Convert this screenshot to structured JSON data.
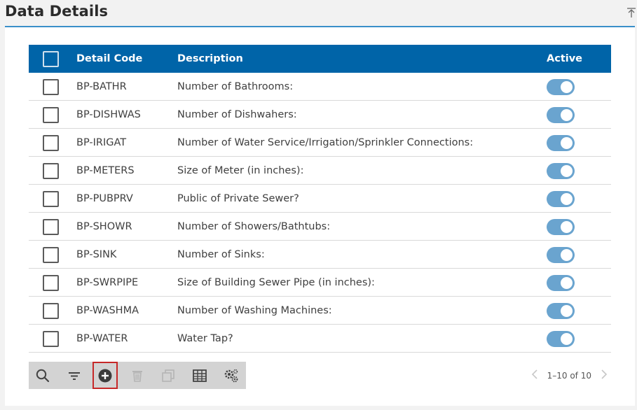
{
  "header": {
    "title": "Data Details"
  },
  "table": {
    "columns": {
      "code": "Detail Code",
      "description": "Description",
      "active": "Active"
    },
    "rows": [
      {
        "code": "BP-BATHR",
        "description": "Number of Bathrooms:",
        "active": true
      },
      {
        "code": "BP-DISHWAS",
        "description": "Number of Dishwahers:",
        "active": true
      },
      {
        "code": "BP-IRIGAT",
        "description": "Number of Water Service/Irrigation/Sprinkler Connections:",
        "active": true
      },
      {
        "code": "BP-METERS",
        "description": "Size of Meter (in inches):",
        "active": true
      },
      {
        "code": "BP-PUBPRV",
        "description": "Public of Private Sewer?",
        "active": true
      },
      {
        "code": "BP-SHOWR",
        "description": "Number of Showers/Bathtubs:",
        "active": true
      },
      {
        "code": "BP-SINK",
        "description": "Number of Sinks:",
        "active": true
      },
      {
        "code": "BP-SWRPIPE",
        "description": "Size of Building Sewer Pipe (in inches):",
        "active": true
      },
      {
        "code": "BP-WASHMA",
        "description": "Number of Washing Machines:",
        "active": true
      },
      {
        "code": "BP-WATER",
        "description": "Water Tap?",
        "active": true
      }
    ]
  },
  "toolbar": {
    "buttons": [
      {
        "name": "search-icon",
        "enabled": true
      },
      {
        "name": "filter-icon",
        "enabled": true
      },
      {
        "name": "add-icon",
        "enabled": true,
        "highlighted": true
      },
      {
        "name": "delete-icon",
        "enabled": false
      },
      {
        "name": "copy-icon",
        "enabled": false
      },
      {
        "name": "columns-icon",
        "enabled": true
      },
      {
        "name": "settings-icon",
        "enabled": true
      }
    ]
  },
  "pager": {
    "range_text": "1–10 of 10",
    "prev_icon": "chevron-left-icon",
    "next_icon": "chevron-right-icon"
  },
  "colors": {
    "header_bg": "#0064a8",
    "accent_line": "#3a8fc9",
    "toggle_on": "#6aa4cf",
    "highlight_outline": "#c62828"
  }
}
